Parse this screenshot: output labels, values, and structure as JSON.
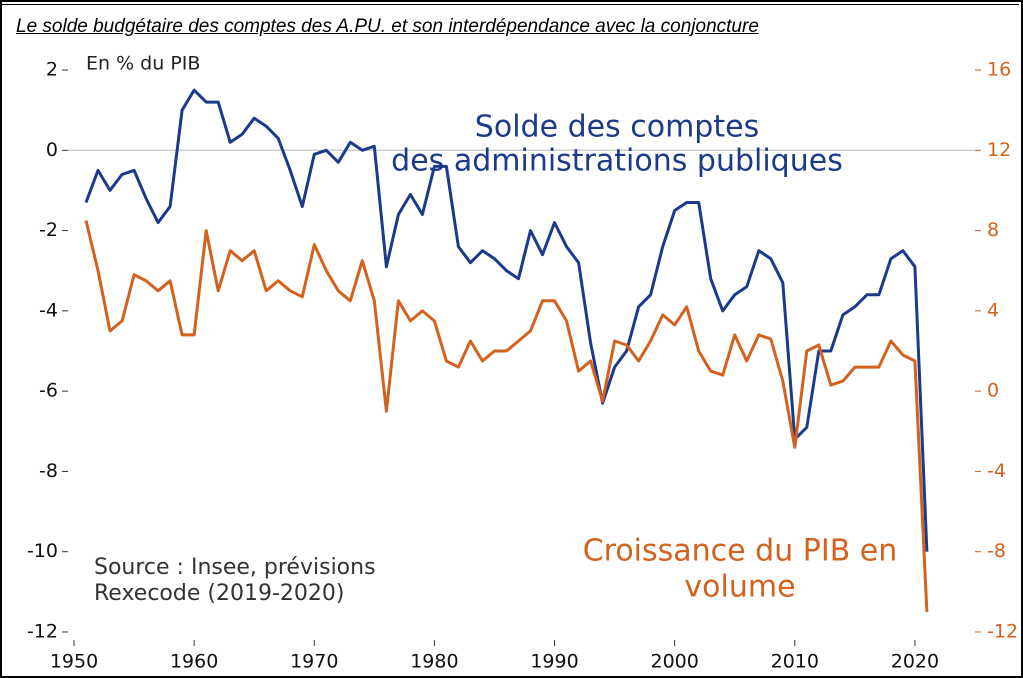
{
  "chart_data": {
    "type": "line",
    "title": "Le solde budgétaire des comptes des A.PU. et son interdépendance avec la conjoncture",
    "y_label": "En % du PIB",
    "x": [
      1951,
      1952,
      1953,
      1954,
      1955,
      1956,
      1957,
      1958,
      1959,
      1960,
      1961,
      1962,
      1963,
      1964,
      1965,
      1966,
      1967,
      1968,
      1969,
      1970,
      1971,
      1972,
      1973,
      1974,
      1975,
      1976,
      1977,
      1978,
      1979,
      1980,
      1981,
      1982,
      1983,
      1984,
      1985,
      1986,
      1987,
      1988,
      1989,
      1990,
      1991,
      1992,
      1993,
      1994,
      1995,
      1996,
      1997,
      1998,
      1999,
      2000,
      2001,
      2002,
      2003,
      2004,
      2005,
      2006,
      2007,
      2008,
      2009,
      2010,
      2011,
      2012,
      2013,
      2014,
      2015,
      2016,
      2017,
      2018,
      2019,
      2020,
      2021
    ],
    "series": [
      {
        "color": "#1c3a8a",
        "axis": "y",
        "values": [
          -1.3,
          -0.5,
          -1.0,
          -0.6,
          -0.5,
          -1.2,
          -1.8,
          -1.4,
          1.0,
          1.5,
          1.2,
          1.2,
          0.2,
          0.4,
          0.8,
          0.6,
          0.3,
          -0.5,
          -1.4,
          -0.1,
          0.0,
          -0.3,
          0.2,
          0.0,
          0.1,
          -2.9,
          -1.6,
          -1.1,
          -1.6,
          -0.4,
          -0.4,
          -2.4,
          -2.8,
          -2.5,
          -2.7,
          -3.0,
          -3.2,
          -2.0,
          -2.6,
          -1.8,
          -2.4,
          -2.8,
          -4.8,
          -6.3,
          -5.4,
          -5.0,
          -3.9,
          -3.6,
          -2.4,
          -1.5,
          -1.3,
          -1.3,
          -3.2,
          -4.0,
          -3.6,
          -3.4,
          -2.5,
          -2.7,
          -3.3,
          -7.2,
          -6.9,
          -5.0,
          -5.0,
          -4.1,
          -3.9,
          -3.6,
          -3.6,
          -2.7,
          -2.5,
          -2.9,
          -10.0
        ]
      },
      {
        "color": "#d2621e",
        "axis": "y2",
        "values": [
          8.5,
          6.0,
          3.0,
          3.5,
          5.8,
          5.5,
          5.0,
          5.5,
          2.8,
          2.8,
          8.0,
          5.0,
          7.0,
          6.5,
          7.0,
          5.0,
          5.5,
          5.0,
          4.7,
          7.3,
          6.0,
          5.0,
          4.5,
          6.5,
          4.5,
          -1.0,
          4.5,
          3.5,
          4.0,
          3.5,
          1.5,
          1.2,
          2.5,
          1.5,
          2.0,
          2.0,
          2.5,
          3.0,
          4.5,
          4.5,
          3.5,
          1.0,
          1.5,
          -0.5,
          2.5,
          2.3,
          1.5,
          2.5,
          3.8,
          3.3,
          4.2,
          2.0,
          1.0,
          0.8,
          2.8,
          1.5,
          2.8,
          2.6,
          0.5,
          -2.8,
          2.0,
          2.3,
          0.3,
          0.5,
          1.2,
          1.2,
          1.2,
          2.5,
          1.8,
          1.5,
          -11.0
        ]
      }
    ],
    "annotations": [
      {
        "lines": [
          "Solde des comptes",
          "des administrations publiques"
        ],
        "color": "#1c3a8a"
      },
      {
        "lines": [
          "Croissance du PIB en",
          "volume"
        ],
        "color": "#d2621e"
      },
      {
        "lines": [
          "Source : Insee, prévisions",
          "Rexecode (2019-2020)"
        ],
        "color": "#333333"
      }
    ],
    "xlim": [
      1949.5,
      2025
    ],
    "xticks": [
      1950,
      1960,
      1970,
      1980,
      1990,
      2000,
      2010,
      2020
    ],
    "ylim": [
      -12.2,
      2.2
    ],
    "yticks": [
      2,
      0,
      -2,
      -4,
      -6,
      -8,
      -10,
      -12
    ],
    "y2lim": [
      -12.4,
      16.4
    ],
    "y2ticks": [
      16,
      12,
      8,
      4,
      0,
      -4,
      -8,
      -12
    ]
  }
}
